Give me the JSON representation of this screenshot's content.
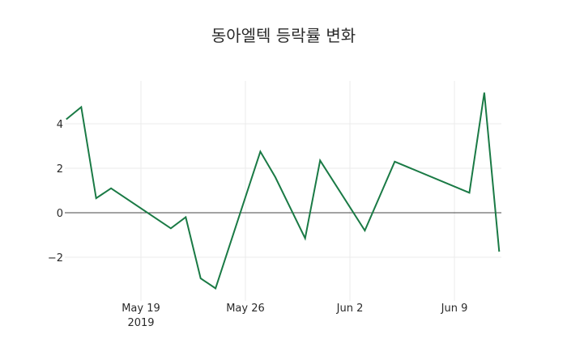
{
  "title": "동아엘텍 등락률 변화",
  "chart_data": {
    "type": "line",
    "title": "동아엘텍 등락률 변화",
    "xlabel": "",
    "ylabel": "",
    "line_color": "#1a7a45",
    "x": [
      "2019-05-14",
      "2019-05-15",
      "2019-05-16",
      "2019-05-17",
      "2019-05-21",
      "2019-05-22",
      "2019-05-23",
      "2019-05-24",
      "2019-05-27",
      "2019-05-28",
      "2019-05-30",
      "2019-05-31",
      "2019-06-03",
      "2019-06-04",
      "2019-06-05",
      "2019-06-10",
      "2019-06-11",
      "2019-06-12"
    ],
    "values": [
      4.2,
      4.75,
      0.65,
      1.1,
      -0.7,
      -0.2,
      -2.95,
      -3.4,
      2.75,
      1.6,
      -1.15,
      2.35,
      -0.8,
      0.75,
      2.3,
      0.9,
      5.4,
      -1.75
    ],
    "x_ticks": [
      {
        "date": "2019-05-19",
        "label": "May 19",
        "sublabel": "2019"
      },
      {
        "date": "2019-05-26",
        "label": "May 26",
        "sublabel": ""
      },
      {
        "date": "2019-06-02",
        "label": "Jun 2",
        "sublabel": ""
      },
      {
        "date": "2019-06-09",
        "label": "Jun 9",
        "sublabel": ""
      }
    ],
    "y_ticks": [
      4,
      2,
      0,
      -2
    ],
    "y_tick_labels": [
      "4",
      "2",
      "0",
      "−2"
    ],
    "ylim": [
      -3.9,
      6.0
    ],
    "xlim": [
      "2019-05-14",
      "2019-06-12"
    ],
    "grid": true,
    "zero_line": true,
    "legend": null
  }
}
